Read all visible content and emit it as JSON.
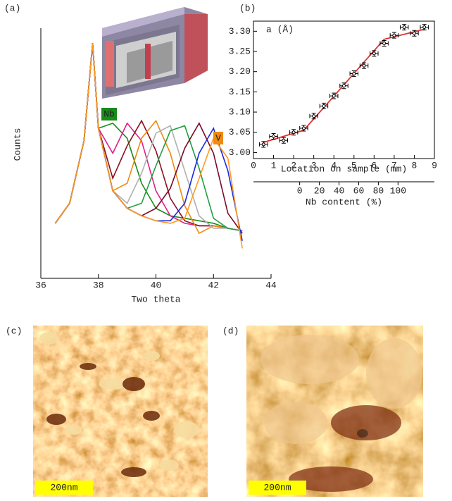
{
  "chart_data": [
    {
      "type": "line",
      "panel_label": "(a)",
      "xlabel": "Two theta",
      "ylabel": "Counts",
      "xlim": [
        36,
        44
      ],
      "xticks": [
        36,
        38,
        40,
        42,
        44
      ],
      "ylim": [
        0,
        10
      ],
      "annotations": [
        {
          "text": "Nb",
          "color": "#1a8a1a"
        },
        {
          "text": "V",
          "color": "#f08a10"
        }
      ],
      "x": [
        36.5,
        37,
        37.5,
        37.8,
        38,
        38.5,
        39,
        39.5,
        40,
        40.5,
        41,
        41.5,
        42,
        42.5,
        43
      ],
      "series": [
        {
          "color": "#1a8a1a",
          "values": [
            2.2,
            3.0,
            5.5,
            9.4,
            6.0,
            6.2,
            5.6,
            3.8,
            2.8,
            2.5,
            2.4,
            2.3,
            2.2,
            2.0,
            1.9
          ]
        },
        {
          "color": "#e0208a",
          "values": [
            2.2,
            3.0,
            5.5,
            9.4,
            6.0,
            5.0,
            6.2,
            5.5,
            3.5,
            2.5,
            2.2,
            2.1,
            2.1,
            2.0,
            1.9
          ]
        },
        {
          "color": "#8a1020",
          "values": [
            2.2,
            3.0,
            5.5,
            9.4,
            6.0,
            4.0,
            5.3,
            6.3,
            5.1,
            3.2,
            2.3,
            2.1,
            2.1,
            2.0,
            1.9
          ]
        },
        {
          "color": "#f08a10",
          "values": [
            2.2,
            3.0,
            5.5,
            9.4,
            6.0,
            3.5,
            3.8,
            5.6,
            6.3,
            5.0,
            2.9,
            1.8,
            2.1,
            2.0,
            1.9
          ]
        },
        {
          "color": "#b0b0b0",
          "values": [
            2.2,
            3.0,
            5.5,
            9.4,
            6.0,
            3.5,
            3.0,
            4.2,
            5.8,
            6.1,
            4.3,
            2.5,
            2.0,
            2.0,
            1.9
          ]
        },
        {
          "color": "#20a040",
          "values": [
            2.2,
            3.0,
            5.5,
            9.4,
            6.0,
            3.5,
            2.8,
            3.0,
            4.5,
            5.9,
            6.1,
            4.4,
            2.4,
            2.0,
            1.9
          ]
        },
        {
          "color": "#7a0a2a",
          "values": [
            2.2,
            3.0,
            5.5,
            9.4,
            6.0,
            3.5,
            2.8,
            2.5,
            2.8,
            3.6,
            5.2,
            6.2,
            5.0,
            2.6,
            1.8
          ]
        },
        {
          "color": "#1a2ae0",
          "values": [
            2.2,
            3.0,
            5.5,
            9.4,
            6.0,
            3.5,
            2.8,
            2.5,
            2.3,
            2.3,
            3.0,
            5.0,
            6.0,
            4.3,
            1.5
          ]
        },
        {
          "color": "#ff9a20",
          "values": [
            2.2,
            3.0,
            5.5,
            9.4,
            6.0,
            3.5,
            2.8,
            2.5,
            2.3,
            2.2,
            2.4,
            4.0,
            5.6,
            4.8,
            1.2
          ]
        }
      ]
    },
    {
      "type": "scatter",
      "panel_label": "(b)",
      "annotation": "a (Å)",
      "xlabel": "Location on sample (mm)",
      "xlim": [
        0,
        9
      ],
      "xticks": [
        0,
        1,
        2,
        3,
        4,
        5,
        6,
        7,
        8,
        9
      ],
      "ylim": [
        2.985,
        3.325
      ],
      "yticks": [
        {
          "value": 3.0,
          "label": "3.00"
        },
        {
          "value": 3.05,
          "label": "3.05"
        },
        {
          "value": 3.1,
          "label": "3.10"
        },
        {
          "value": 3.15,
          "label": "3.15"
        },
        {
          "value": 3.2,
          "label": "3.20"
        },
        {
          "value": 3.25,
          "label": "3.25"
        },
        {
          "value": 3.3,
          "label": "3.30"
        }
      ],
      "x2label": "Nb content (%)",
      "x2lim": [
        -47,
        137
      ],
      "x2ticks": [
        0,
        20,
        40,
        60,
        80,
        100
      ],
      "x_err": 0.2,
      "y_err": 0.007,
      "series": [
        {
          "color": "#000000",
          "x": [
            0.5,
            1,
            1.5,
            2,
            2.5,
            3,
            3.5,
            4,
            4.5,
            5,
            5.5,
            6,
            6.5,
            7,
            7.5,
            8,
            8.5
          ],
          "values": [
            3.02,
            3.04,
            3.03,
            3.05,
            3.06,
            3.09,
            3.115,
            3.14,
            3.165,
            3.195,
            3.215,
            3.245,
            3.27,
            3.29,
            3.31,
            3.295,
            3.31
          ]
        }
      ],
      "fit": {
        "color": "#e03030",
        "x": [
          0.5,
          2.5,
          6.5,
          8.5
        ],
        "values": [
          3.025,
          3.055,
          3.28,
          3.305
        ]
      }
    }
  ],
  "images": [
    {
      "label": "(c)",
      "scale_bar": "200nm"
    },
    {
      "label": "(d)",
      "scale_bar": "200nm"
    }
  ]
}
